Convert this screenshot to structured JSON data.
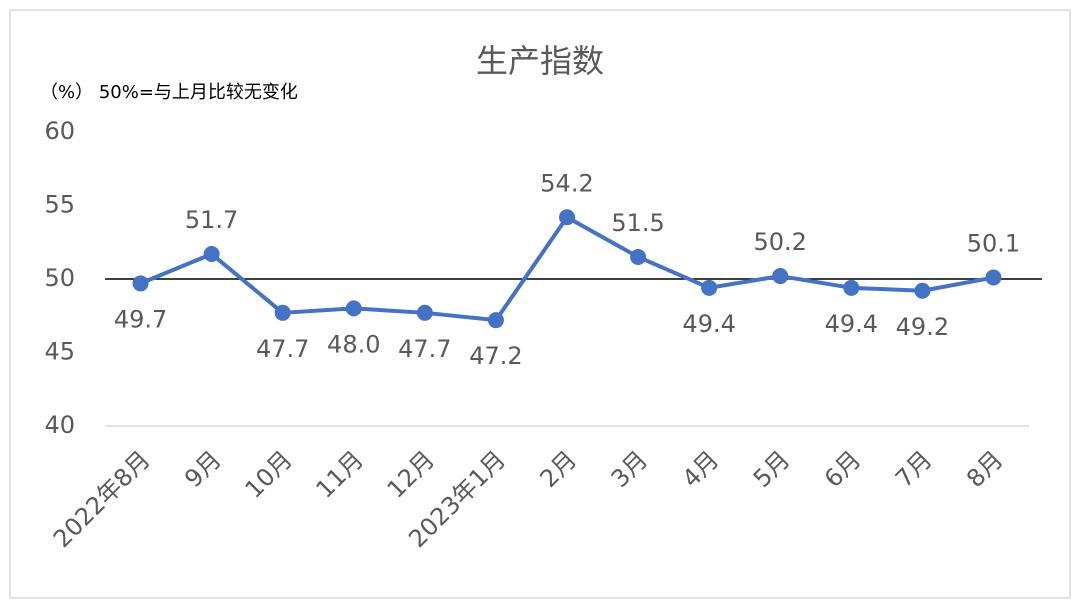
{
  "chart_data": {
    "type": "line",
    "title": "生产指数",
    "annotation": "（%） 50%=与上月比较无变化",
    "categories": [
      "2022年8月",
      "9月",
      "10月",
      "11月",
      "12月",
      "2023年1月",
      "2月",
      "3月",
      "4月",
      "5月",
      "6月",
      "7月",
      "8月"
    ],
    "values": [
      49.7,
      51.7,
      47.7,
      48.0,
      47.7,
      47.2,
      54.2,
      51.5,
      49.4,
      50.2,
      49.4,
      49.2,
      50.1
    ],
    "value_labels": [
      "49.7",
      "51.7",
      "47.7",
      "48.0",
      "47.7",
      "47.2",
      "54.2",
      "51.5",
      "49.4",
      "50.2",
      "49.4",
      "49.2",
      "50.1"
    ],
    "color": "#4472c4",
    "reference_line": 50,
    "ylim": [
      40,
      60
    ],
    "yticks": [
      40,
      45,
      50,
      55,
      60
    ],
    "grid": false
  }
}
